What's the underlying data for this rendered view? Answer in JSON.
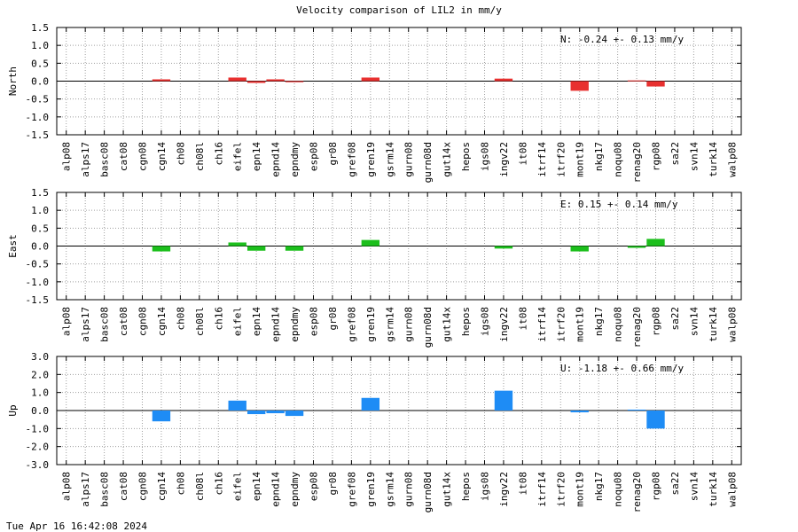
{
  "title": "Velocity comparison of LIL2 in mm/y",
  "timestamp": "Tue Apr 16 16:42:08 2024",
  "chart_data": [
    {
      "type": "bar",
      "ylabel": "North",
      "ylim": [
        -1.5,
        1.5
      ],
      "yticks": [
        "1.5",
        "1.0",
        "0.5",
        "0.0",
        "-0.5",
        "-1.0",
        "-1.5"
      ],
      "grid": true,
      "color": "#e8302f",
      "annotation": "N:  -0.24 +-  0.13 mm/y",
      "categories": [
        "alp08",
        "alps17",
        "basc08",
        "cat08",
        "cgn08",
        "cgn14",
        "ch08",
        "ch08l",
        "ch16",
        "eifel",
        "epn14",
        "epnd14",
        "epndmy",
        "esp08",
        "gr08",
        "gref08",
        "gren19",
        "gsrm14",
        "gurn08",
        "gurn08d",
        "gut14x",
        "hepos",
        "igs08",
        "ingv22",
        "it08",
        "itrf14",
        "itrf20",
        "mont19",
        "nkg17",
        "noqu08",
        "renag20",
        "rgp08",
        "sa22",
        "svn14",
        "turk14",
        "walp08"
      ],
      "values": [
        0,
        0,
        0,
        0,
        0,
        0.05,
        0,
        0,
        0,
        0.1,
        -0.05,
        0.05,
        -0.03,
        0,
        0,
        0,
        0.1,
        0,
        0,
        0,
        0,
        0,
        0,
        0.07,
        0,
        0,
        0,
        -0.27,
        0,
        0,
        0.02,
        -0.15,
        0,
        0,
        0,
        0
      ]
    },
    {
      "type": "bar",
      "ylabel": "East",
      "ylim": [
        -1.5,
        1.5
      ],
      "yticks": [
        "1.5",
        "1.0",
        "0.5",
        "0.0",
        "-0.5",
        "-1.0",
        "-1.5"
      ],
      "grid": true,
      "color": "#1cbf1c",
      "annotation": "E:   0.15 +-  0.14 mm/y",
      "categories": [
        "alp08",
        "alps17",
        "basc08",
        "cat08",
        "cgn08",
        "cgn14",
        "ch08",
        "ch08l",
        "ch16",
        "eifel",
        "epn14",
        "epnd14",
        "epndmy",
        "esp08",
        "gr08",
        "gref08",
        "gren19",
        "gsrm14",
        "gurn08",
        "gurn08d",
        "gut14x",
        "hepos",
        "igs08",
        "ingv22",
        "it08",
        "itrf14",
        "itrf20",
        "mont19",
        "nkg17",
        "noqu08",
        "renag20",
        "rgp08",
        "sa22",
        "svn14",
        "turk14",
        "walp08"
      ],
      "values": [
        0,
        0,
        0,
        0,
        0,
        -0.15,
        0,
        0,
        0,
        0.1,
        -0.13,
        0,
        -0.13,
        0,
        0,
        0,
        0.17,
        0,
        0,
        0,
        0,
        0,
        0,
        -0.07,
        0,
        0,
        0,
        -0.15,
        0,
        0,
        -0.05,
        0.2,
        0,
        0,
        0,
        0
      ]
    },
    {
      "type": "bar",
      "ylabel": "Up",
      "ylim": [
        -3.0,
        3.0
      ],
      "yticks": [
        "3.0",
        "2.0",
        "1.0",
        "0.0",
        "-1.0",
        "-2.0",
        "-3.0"
      ],
      "grid": true,
      "color": "#1e8cf5",
      "annotation": "U:  -1.18 +-  0.66 mm/y",
      "categories": [
        "alp08",
        "alps17",
        "basc08",
        "cat08",
        "cgn08",
        "cgn14",
        "ch08",
        "ch08l",
        "ch16",
        "eifel",
        "epn14",
        "epnd14",
        "epndmy",
        "esp08",
        "gr08",
        "gref08",
        "gren19",
        "gsrm14",
        "gurn08",
        "gurn08d",
        "gut14x",
        "hepos",
        "igs08",
        "ingv22",
        "it08",
        "itrf14",
        "itrf20",
        "mont19",
        "nkg17",
        "noqu08",
        "renag20",
        "rgp08",
        "sa22",
        "svn14",
        "turk14",
        "walp08"
      ],
      "values": [
        0,
        0,
        0,
        0,
        0,
        -0.6,
        0,
        0,
        0,
        0.55,
        -0.2,
        -0.15,
        -0.3,
        0,
        0,
        0,
        0.7,
        0,
        0,
        0,
        0,
        0,
        0,
        1.1,
        0,
        0,
        0,
        -0.1,
        0,
        0,
        0.05,
        -1.0,
        0,
        0,
        0,
        0
      ]
    }
  ]
}
